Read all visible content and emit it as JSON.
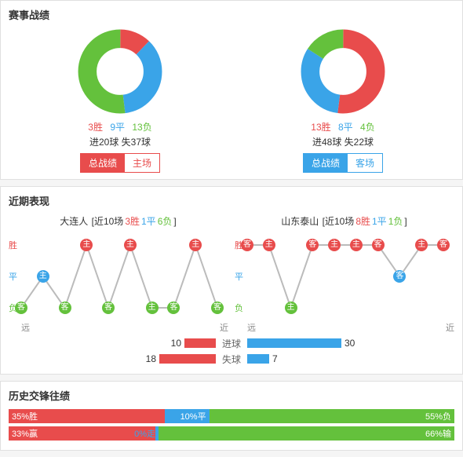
{
  "colors": {
    "win": "#e84c4c",
    "draw": "#3aa4e8",
    "loss": "#64c13c",
    "gray": "#bbb"
  },
  "record": {
    "title": "赛事战绩",
    "left": {
      "slices": [
        {
          "value": 3,
          "color": "#e84c4c"
        },
        {
          "value": 9,
          "color": "#3aa4e8"
        },
        {
          "value": 13,
          "color": "#64c13c"
        }
      ],
      "wdl": {
        "w": "3胜",
        "d": "9平",
        "l": "13负"
      },
      "goals": "进20球 失37球",
      "tabs": {
        "active": "总战绩",
        "inactive": "主场",
        "activeIdx": 0,
        "color": "#e84c4c"
      }
    },
    "right": {
      "slices": [
        {
          "value": 13,
          "color": "#e84c4c"
        },
        {
          "value": 8,
          "color": "#3aa4e8"
        },
        {
          "value": 4,
          "color": "#64c13c"
        }
      ],
      "wdl": {
        "w": "13胜",
        "d": "8平",
        "l": "4负"
      },
      "goals": "进48球 失22球",
      "tabs": {
        "active": "总战绩",
        "inactive": "客场",
        "activeIdx": 0,
        "color": "#3aa4e8"
      }
    }
  },
  "recent": {
    "title": "近期表现",
    "yLabels": {
      "w": "胜",
      "d": "平",
      "l": "负"
    },
    "xLabels": {
      "far": "远",
      "near": "近"
    },
    "left": {
      "team": "大连人",
      "summaryPrefix": "[近10场",
      "w": "3胜",
      "d": "1平",
      "l": "6负",
      "summarySuffix": "]",
      "points": [
        {
          "r": "l",
          "t": "客",
          "c": "#64c13c"
        },
        {
          "r": "d",
          "t": "主",
          "c": "#3aa4e8"
        },
        {
          "r": "l",
          "t": "客",
          "c": "#64c13c"
        },
        {
          "r": "w",
          "t": "主",
          "c": "#e84c4c"
        },
        {
          "r": "l",
          "t": "客",
          "c": "#64c13c"
        },
        {
          "r": "w",
          "t": "主",
          "c": "#e84c4c"
        },
        {
          "r": "l",
          "t": "主",
          "c": "#64c13c"
        },
        {
          "r": "l",
          "t": "客",
          "c": "#64c13c"
        },
        {
          "r": "w",
          "t": "主",
          "c": "#e84c4c"
        },
        {
          "r": "l",
          "t": "客",
          "c": "#64c13c"
        }
      ]
    },
    "right": {
      "team": "山东泰山",
      "summaryPrefix": "[近10场",
      "w": "8胜",
      "d": "1平",
      "l": "1负",
      "summarySuffix": "]",
      "points": [
        {
          "r": "w",
          "t": "客",
          "c": "#e84c4c"
        },
        {
          "r": "w",
          "t": "主",
          "c": "#e84c4c"
        },
        {
          "r": "l",
          "t": "主",
          "c": "#64c13c"
        },
        {
          "r": "w",
          "t": "客",
          "c": "#e84c4c"
        },
        {
          "r": "w",
          "t": "主",
          "c": "#e84c4c"
        },
        {
          "r": "w",
          "t": "主",
          "c": "#e84c4c"
        },
        {
          "r": "w",
          "t": "客",
          "c": "#e84c4c"
        },
        {
          "r": "d",
          "t": "客",
          "c": "#3aa4e8"
        },
        {
          "r": "w",
          "t": "主",
          "c": "#e84c4c"
        },
        {
          "r": "w",
          "t": "客",
          "c": "#e84c4c"
        }
      ]
    },
    "bars": {
      "rows": [
        {
          "label": "进球",
          "left": {
            "val": 10,
            "color": "#e84c4c"
          },
          "right": {
            "val": 30,
            "color": "#3aa4e8"
          },
          "max": 30
        },
        {
          "label": "失球",
          "left": {
            "val": 18,
            "color": "#e84c4c"
          },
          "right": {
            "val": 7,
            "color": "#3aa4e8"
          },
          "max": 30
        }
      ]
    }
  },
  "history": {
    "title": "历史交锋往绩",
    "rows": [
      {
        "a": {
          "pct": 35,
          "label": "35%胜",
          "color": "#e84c4c"
        },
        "b": {
          "pct": 10,
          "label": "10%平",
          "color": "#3aa4e8"
        },
        "c": {
          "pct": 55,
          "label": "55%负",
          "color": "#64c13c"
        }
      },
      {
        "a": {
          "pct": 33,
          "label": "33%赢",
          "color": "#e84c4c"
        },
        "b": {
          "pct": 0.5,
          "label": "0%走",
          "color": "#3aa4e8"
        },
        "c": {
          "pct": 66.5,
          "label": "66%输",
          "color": "#64c13c"
        }
      }
    ]
  }
}
